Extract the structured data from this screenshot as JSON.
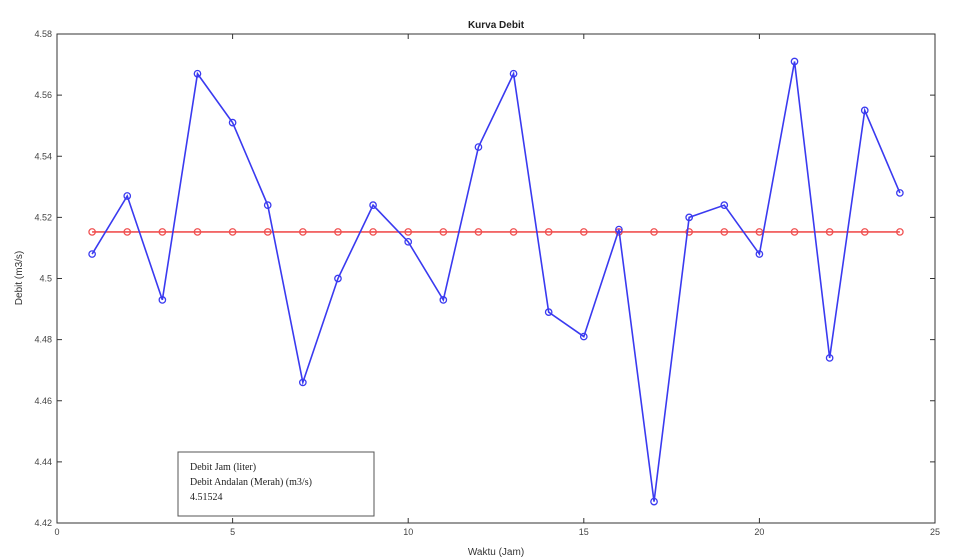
{
  "chart_data": {
    "type": "line",
    "title": "Kurva Debit",
    "xlabel": "Waktu (Jam)",
    "ylabel": "Debit (m3/s)",
    "xlim": [
      0,
      25
    ],
    "ylim": [
      4.42,
      4.58
    ],
    "x_ticks": [
      0,
      5,
      10,
      15,
      20,
      25
    ],
    "y_ticks": [
      4.42,
      4.44,
      4.46,
      4.48,
      4.5,
      4.52,
      4.54,
      4.56,
      4.58
    ],
    "x_tick_labels": [
      "0",
      "5",
      "10",
      "15",
      "20",
      "25"
    ],
    "y_tick_labels": [
      "4.42",
      "4.44",
      "4.46",
      "4.48",
      "4.5",
      "4.52",
      "4.54",
      "4.56",
      "4.58"
    ],
    "grid": false,
    "legend_position": "bottom-left",
    "series": [
      {
        "name": "Debit Jam (liter)",
        "color": "#3a3af0",
        "marker": "circle",
        "x": [
          1,
          2,
          3,
          4,
          5,
          6,
          7,
          8,
          9,
          10,
          11,
          12,
          13,
          14,
          15,
          16,
          17,
          18,
          19,
          20,
          21,
          22,
          23,
          24
        ],
        "values": [
          4.508,
          4.527,
          4.493,
          4.567,
          4.551,
          4.524,
          4.466,
          4.5,
          4.524,
          4.512,
          4.493,
          4.543,
          4.567,
          4.489,
          4.481,
          4.516,
          4.427,
          4.52,
          4.524,
          4.508,
          4.571,
          4.474,
          4.555,
          4.528
        ]
      },
      {
        "name": "Debit Andalan (Merah) (m3/s)",
        "color": "#f05050",
        "marker": "circle",
        "x": [
          1,
          2,
          3,
          4,
          5,
          6,
          7,
          8,
          9,
          10,
          11,
          12,
          13,
          14,
          15,
          16,
          17,
          18,
          19,
          20,
          21,
          22,
          23,
          24
        ],
        "values": [
          4.51524,
          4.51524,
          4.51524,
          4.51524,
          4.51524,
          4.51524,
          4.51524,
          4.51524,
          4.51524,
          4.51524,
          4.51524,
          4.51524,
          4.51524,
          4.51524,
          4.51524,
          4.51524,
          4.51524,
          4.51524,
          4.51524,
          4.51524,
          4.51524,
          4.51524,
          4.51524,
          4.51524
        ]
      }
    ],
    "legend_entries": [
      "Debit Jam (liter)",
      "Debit Andalan (Merah) (m3/s)",
      "4.51524"
    ]
  }
}
